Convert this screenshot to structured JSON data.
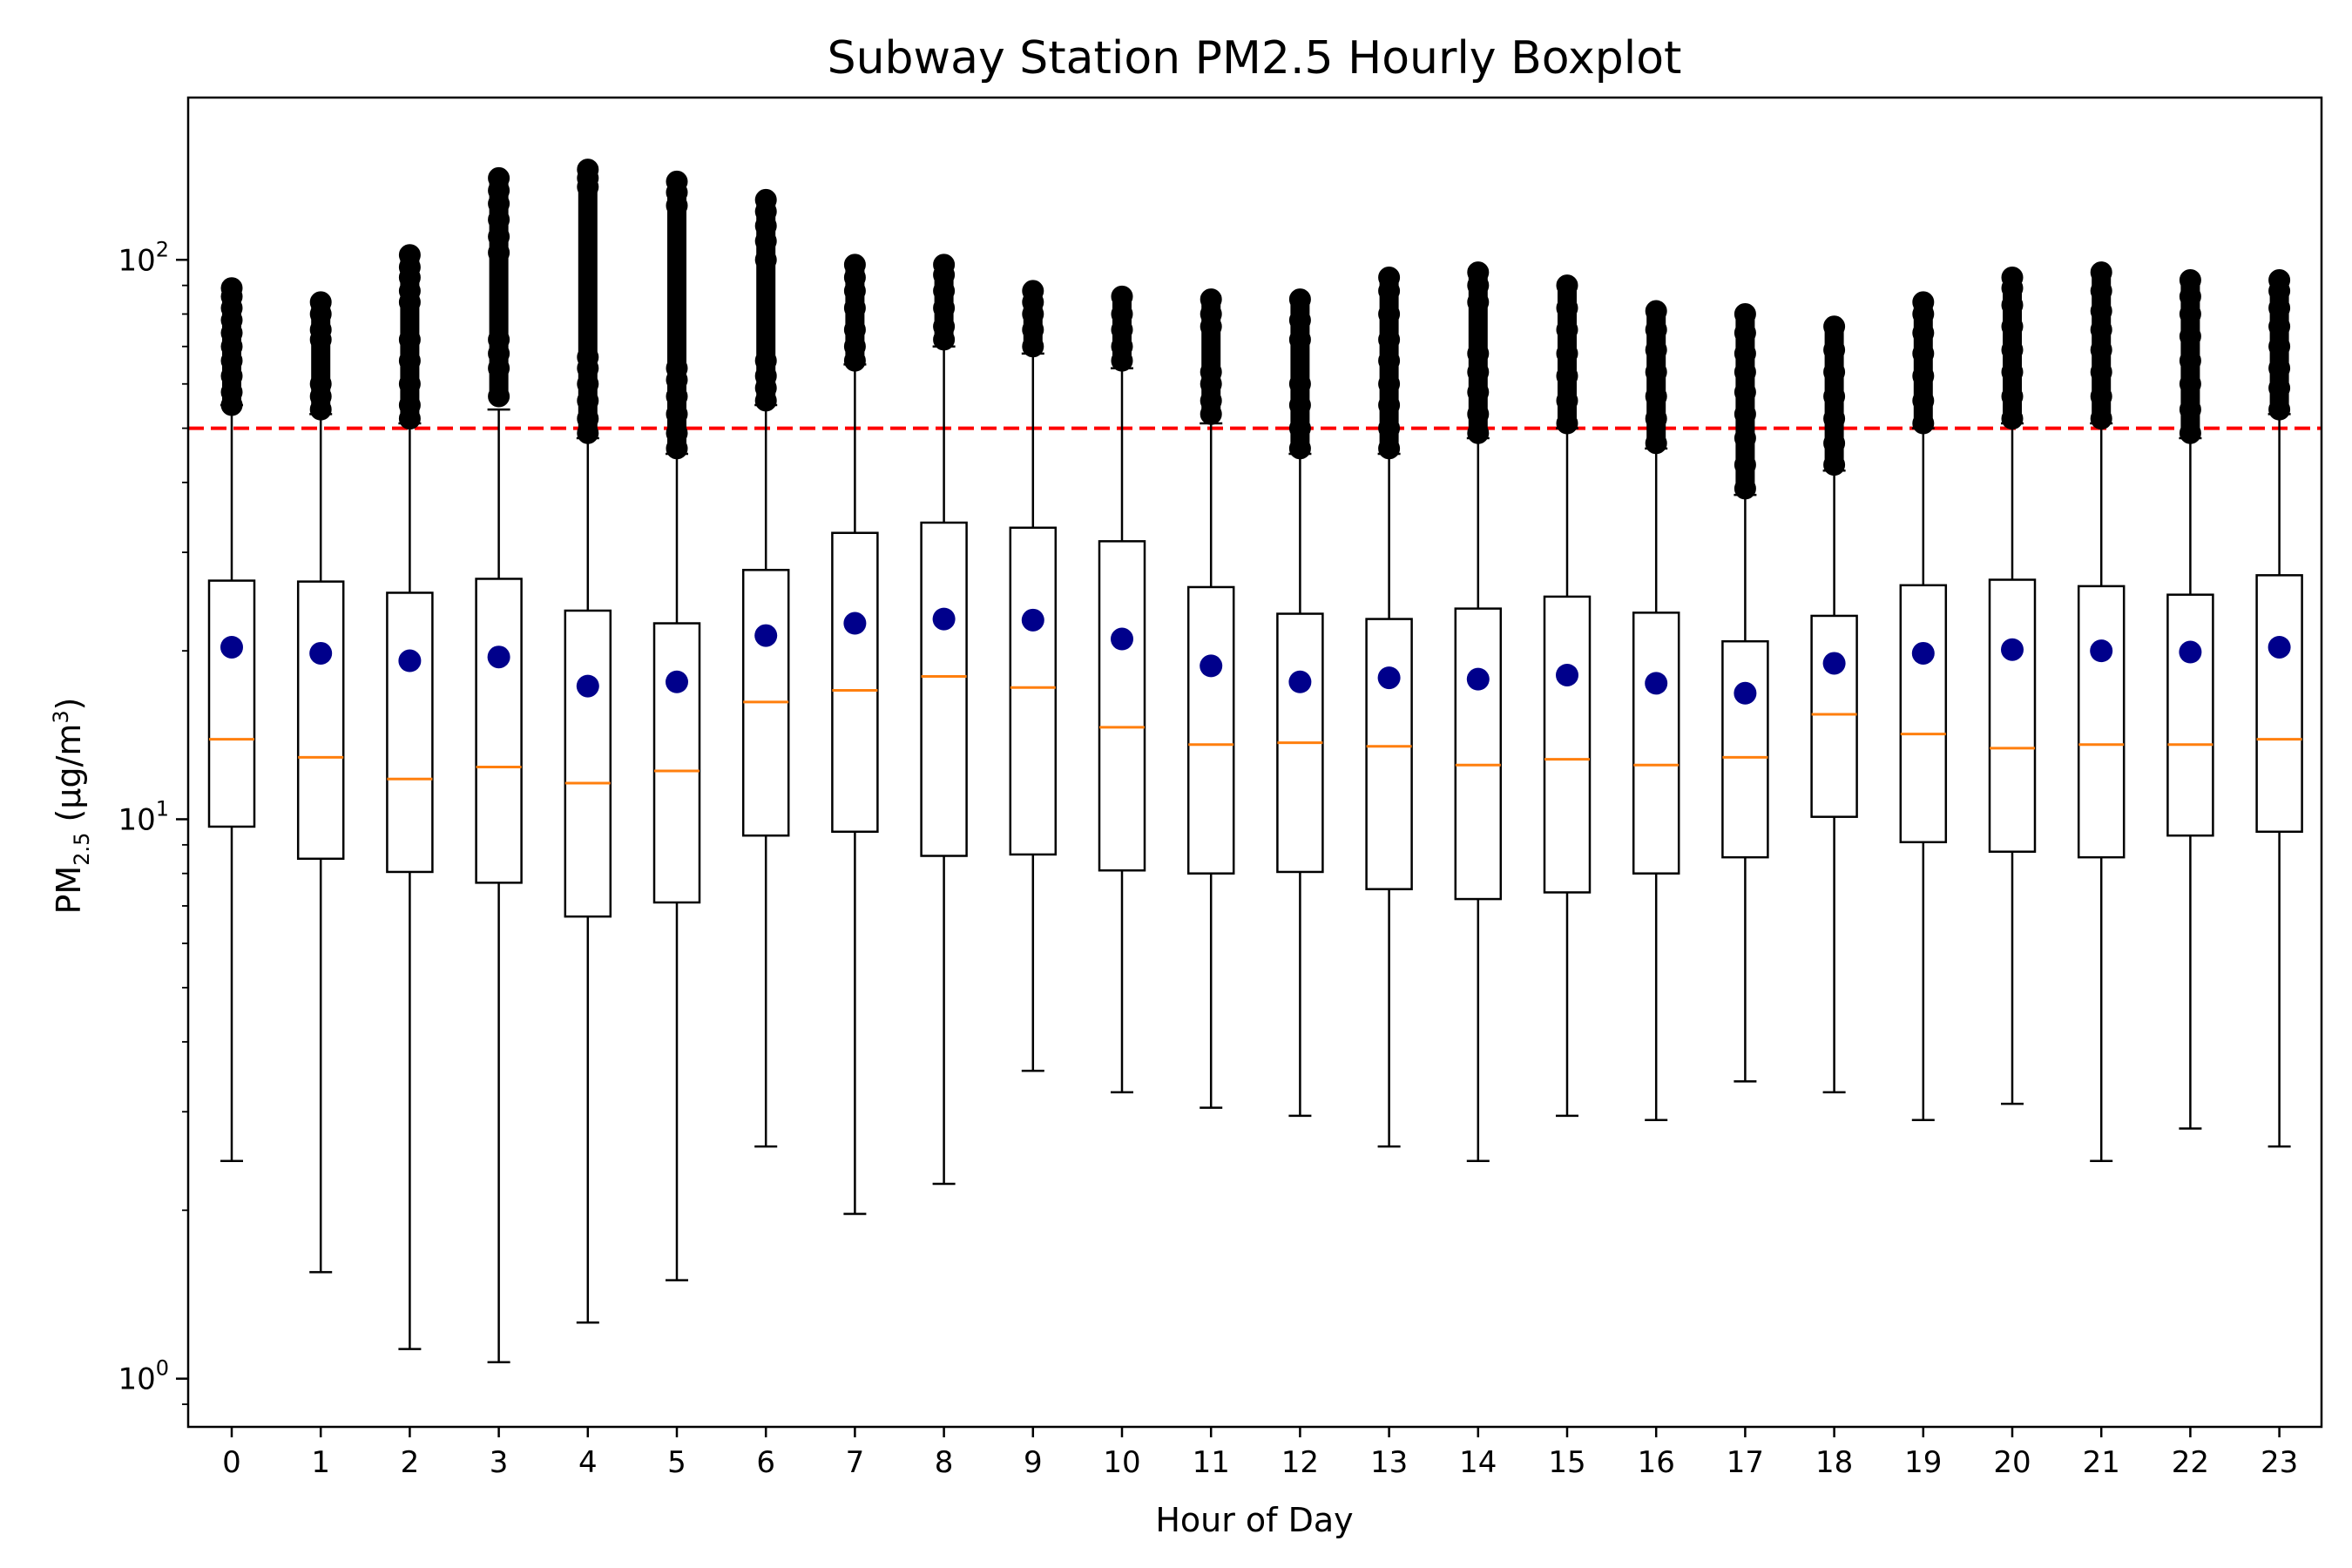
{
  "chart_data": {
    "type": "boxplot",
    "title": "Subway Station PM2.5 Hourly Boxplot",
    "xlabel": "Hour of Day",
    "ylabel": {
      "base": "PM",
      "subscript": "2.5",
      "unit_open": " (μg/m",
      "unit_sup": "3",
      "unit_close": ")"
    },
    "yscale": "log",
    "ylim": [
      0.82,
      195
    ],
    "yticks": [
      {
        "value": 1,
        "base": "10",
        "exp": "0"
      },
      {
        "value": 10,
        "base": "10",
        "exp": "1"
      },
      {
        "value": 100,
        "base": "10",
        "exp": "2"
      }
    ],
    "grid": false,
    "reference_line": {
      "value": 50,
      "color": "#ff0000",
      "style": "dashed"
    },
    "colors": {
      "box": "#000000",
      "median": "#ff7f0e",
      "mean": "#00008b",
      "flier": "#000000",
      "reference": "#ff0000"
    },
    "categories": [
      "0",
      "1",
      "2",
      "3",
      "4",
      "5",
      "6",
      "7",
      "8",
      "9",
      "10",
      "11",
      "12",
      "13",
      "14",
      "15",
      "16",
      "17",
      "18",
      "19",
      "20",
      "21",
      "22",
      "23"
    ],
    "boxes": [
      {
        "hour": "0",
        "whisker_low": 2.45,
        "q1": 9.7,
        "median": 13.9,
        "q3": 26.7,
        "whisker_high": 55,
        "mean": 20.3,
        "fliers": [
          55,
          58,
          62,
          66,
          70,
          74,
          78,
          82,
          86,
          89
        ]
      },
      {
        "hour": "1",
        "whisker_low": 1.55,
        "q1": 8.5,
        "median": 12.9,
        "q3": 26.6,
        "whisker_high": 53,
        "mean": 19.8,
        "fliers": [
          54,
          57,
          60,
          72,
          75,
          80,
          84
        ]
      },
      {
        "hour": "2",
        "whisker_low": 1.13,
        "q1": 8.05,
        "median": 11.8,
        "q3": 25.4,
        "whisker_high": 51,
        "mean": 19.2,
        "fliers": [
          52,
          55,
          60,
          66,
          72,
          84,
          88,
          93,
          97,
          102
        ]
      },
      {
        "hour": "3",
        "whisker_low": 1.07,
        "q1": 7.7,
        "median": 12.4,
        "q3": 26.9,
        "whisker_high": 54,
        "mean": 19.5,
        "fliers": [
          57,
          64,
          68,
          72,
          103,
          110,
          118,
          126,
          133,
          140
        ]
      },
      {
        "hour": "4",
        "whisker_low": 1.26,
        "q1": 6.7,
        "median": 11.6,
        "q3": 23.6,
        "whisker_high": 48,
        "mean": 17.3,
        "fliers": [
          49,
          52,
          56,
          60,
          64,
          67,
          135,
          140,
          145
        ]
      },
      {
        "hour": "5",
        "whisker_low": 1.5,
        "q1": 7.1,
        "median": 12.2,
        "q3": 22.4,
        "whisker_high": 45,
        "mean": 17.6,
        "fliers": [
          46,
          49,
          53,
          57,
          61,
          64,
          125,
          132,
          138
        ]
      },
      {
        "hour": "6",
        "whisker_low": 2.6,
        "q1": 9.35,
        "median": 16.2,
        "q3": 27.9,
        "whisker_high": 55,
        "mean": 21.3,
        "fliers": [
          56,
          59,
          62,
          66,
          100,
          108,
          115,
          122,
          128
        ]
      },
      {
        "hour": "7",
        "whisker_low": 1.97,
        "q1": 9.5,
        "median": 17.0,
        "q3": 32.5,
        "whisker_high": 65,
        "mean": 22.4,
        "fliers": [
          66,
          70,
          75,
          82,
          88,
          93,
          98
        ]
      },
      {
        "hour": "8",
        "whisker_low": 2.23,
        "q1": 8.6,
        "median": 18.0,
        "q3": 33.9,
        "whisker_high": 70,
        "mean": 22.8,
        "fliers": [
          72,
          76,
          82,
          88,
          94,
          98
        ]
      },
      {
        "hour": "9",
        "whisker_low": 3.55,
        "q1": 8.65,
        "median": 17.2,
        "q3": 33.2,
        "whisker_high": 68,
        "mean": 22.7,
        "fliers": [
          70,
          75,
          80,
          84,
          88
        ]
      },
      {
        "hour": "10",
        "whisker_low": 3.25,
        "q1": 8.1,
        "median": 14.6,
        "q3": 31.4,
        "whisker_high": 64,
        "mean": 21.0,
        "fliers": [
          66,
          70,
          75,
          80,
          86
        ]
      },
      {
        "hour": "11",
        "whisker_low": 3.05,
        "q1": 8.0,
        "median": 13.6,
        "q3": 26.0,
        "whisker_high": 51,
        "mean": 18.8,
        "fliers": [
          53,
          56,
          60,
          63,
          76,
          80,
          85
        ]
      },
      {
        "hour": "12",
        "whisker_low": 2.95,
        "q1": 8.05,
        "median": 13.7,
        "q3": 23.3,
        "whisker_high": 45,
        "mean": 17.6,
        "fliers": [
          46,
          50,
          55,
          60,
          72,
          78,
          85
        ]
      },
      {
        "hour": "13",
        "whisker_low": 2.6,
        "q1": 7.5,
        "median": 13.5,
        "q3": 22.8,
        "whisker_high": 45,
        "mean": 17.9,
        "fliers": [
          46,
          50,
          55,
          60,
          66,
          72,
          80,
          88,
          93
        ]
      },
      {
        "hour": "14",
        "whisker_low": 2.45,
        "q1": 7.2,
        "median": 12.5,
        "q3": 23.8,
        "whisker_high": 48,
        "mean": 17.8,
        "fliers": [
          49,
          53,
          58,
          63,
          68,
          84,
          90,
          95
        ]
      },
      {
        "hour": "15",
        "whisker_low": 2.95,
        "q1": 7.4,
        "median": 12.8,
        "q3": 25.0,
        "whisker_high": 50,
        "mean": 18.1,
        "fliers": [
          51,
          56,
          62,
          68,
          75,
          82,
          90
        ]
      },
      {
        "hour": "16",
        "whisker_low": 2.9,
        "q1": 8.0,
        "median": 12.5,
        "q3": 23.4,
        "whisker_high": 46,
        "mean": 17.5,
        "fliers": [
          47,
          52,
          57,
          63,
          69,
          75,
          81
        ]
      },
      {
        "hour": "17",
        "whisker_low": 3.4,
        "q1": 8.55,
        "median": 12.9,
        "q3": 20.8,
        "whisker_high": 38,
        "mean": 16.8,
        "fliers": [
          39,
          43,
          48,
          53,
          58,
          63,
          68,
          74,
          80
        ]
      },
      {
        "hour": "18",
        "whisker_low": 3.25,
        "q1": 10.1,
        "median": 15.4,
        "q3": 23.1,
        "whisker_high": 42,
        "mean": 19.0,
        "fliers": [
          43,
          47,
          52,
          57,
          63,
          69,
          76
        ]
      },
      {
        "hour": "19",
        "whisker_low": 2.9,
        "q1": 9.1,
        "median": 14.2,
        "q3": 26.2,
        "whisker_high": 50,
        "mean": 19.8,
        "fliers": [
          51,
          56,
          62,
          68,
          74,
          80,
          84
        ]
      },
      {
        "hour": "20",
        "whisker_low": 3.1,
        "q1": 8.75,
        "median": 13.4,
        "q3": 26.8,
        "whisker_high": 51,
        "mean": 20.1,
        "fliers": [
          52,
          57,
          63,
          69,
          76,
          83,
          89,
          93
        ]
      },
      {
        "hour": "21",
        "whisker_low": 2.45,
        "q1": 8.55,
        "median": 13.6,
        "q3": 26.1,
        "whisker_high": 51,
        "mean": 20.0,
        "fliers": [
          52,
          57,
          63,
          69,
          75,
          81,
          88,
          95
        ]
      },
      {
        "hour": "22",
        "whisker_low": 2.8,
        "q1": 9.35,
        "median": 13.6,
        "q3": 25.2,
        "whisker_high": 48,
        "mean": 19.9,
        "fliers": [
          49,
          54,
          60,
          66,
          73,
          80,
          86,
          92
        ]
      },
      {
        "hour": "23",
        "whisker_low": 2.6,
        "q1": 9.5,
        "median": 13.9,
        "q3": 27.3,
        "whisker_high": 53,
        "mean": 20.3,
        "fliers": [
          54,
          59,
          64,
          70,
          76,
          82,
          88,
          92
        ]
      }
    ]
  }
}
